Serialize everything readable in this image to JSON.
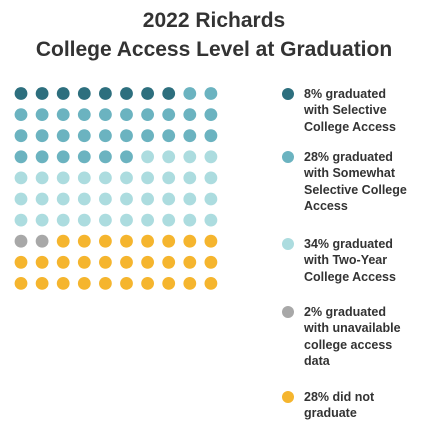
{
  "chart_data": {
    "type": "waffle",
    "title_lines": [
      "2022 Richards",
      "College Access Level at Graduation"
    ],
    "grid": {
      "rows": 10,
      "cols": 10
    },
    "series": [
      {
        "name": "8% graduated with Selective College Access",
        "legend_lines": [
          "8% graduated",
          "with Selective",
          "College Access"
        ],
        "value": 8,
        "color": "#2d6f7e"
      },
      {
        "name": "28% graduated with Somewhat Selective College Access",
        "legend_lines": [
          "28% graduated",
          "with Somewhat",
          "Selective College",
          "Access"
        ],
        "value": 28,
        "color": "#6bb3c0"
      },
      {
        "name": "34% graduated with Two-Year College Access",
        "legend_lines": [
          "34% graduated",
          "with Two-Year",
          "College Access"
        ],
        "value": 34,
        "color": "#acdcdf"
      },
      {
        "name": "2% graduated with unavailable college access data",
        "legend_lines": [
          "2% graduated",
          "with unavailable",
          "college access",
          "data"
        ],
        "value": 2,
        "color": "#a8a8a8"
      },
      {
        "name": "28% did not graduate",
        "legend_lines": [
          "28% did not",
          "graduate"
        ],
        "value": 28,
        "color": "#f5b52e"
      }
    ],
    "legend_position": "right"
  }
}
